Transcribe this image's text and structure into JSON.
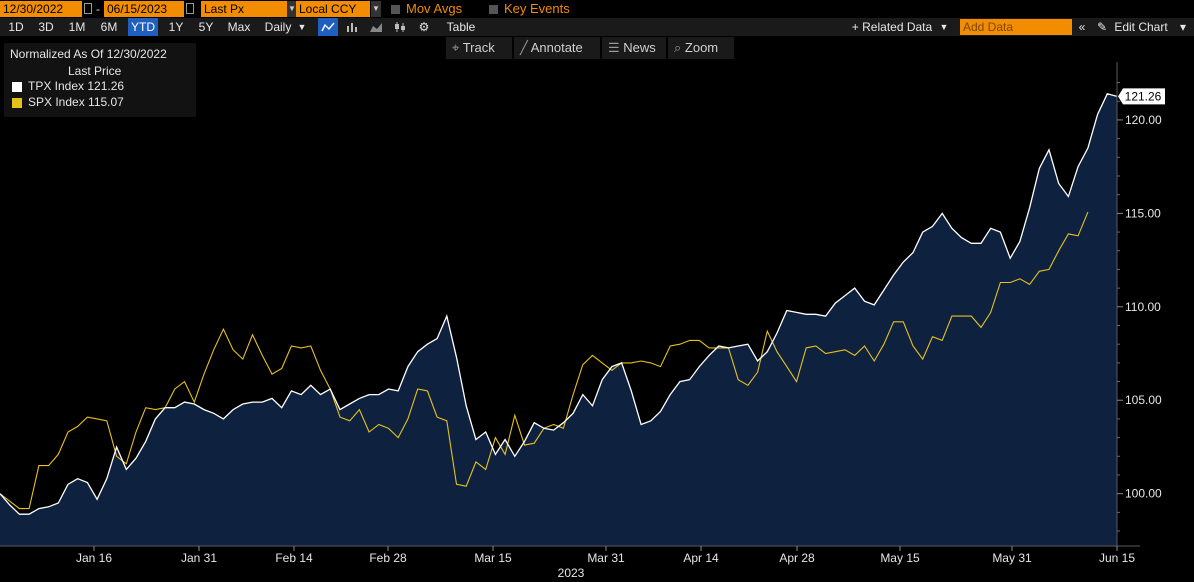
{
  "toolbar": {
    "start_date": "12/30/2022",
    "end_date": "06/15/2023",
    "price_field": "Last Px",
    "currency": "Local CCY",
    "mov_avgs_label": "Mov Avgs",
    "key_events_label": "Key Events",
    "periods": [
      "1D",
      "3D",
      "1M",
      "6M",
      "YTD",
      "1Y",
      "5Y",
      "Max"
    ],
    "active_period": "YTD",
    "frequency": "Daily",
    "table_label": "Table",
    "related_data_label": "+ Related Data",
    "add_data_placeholder": "Add Data",
    "edit_chart_label": "Edit Chart"
  },
  "tools": [
    "Track",
    "Annotate",
    "News",
    "Zoom"
  ],
  "legend": {
    "title": "Normalized As Of 12/30/2022",
    "subtitle": "Last Price",
    "entries": [
      {
        "label": "TPX Index 121.26",
        "color": "#ffffff"
      },
      {
        "label": "SPX Index 115.07",
        "color": "#e6c11a"
      }
    ]
  },
  "colors": {
    "tpx": "#ffffff",
    "spx": "#e6c11a",
    "area": "#0e2240",
    "accent": "#f28c00"
  },
  "chart_data": {
    "type": "line",
    "title": "",
    "xlabel": "2023",
    "x_ticks": [
      "Jan 16",
      "Jan 31",
      "Feb 14",
      "Feb 28",
      "Mar 15",
      "Mar 31",
      "Apr 14",
      "Apr 28",
      "May 15",
      "May 31",
      "Jun 15"
    ],
    "y_ticks": [
      "100.00",
      "105.00",
      "110.00",
      "115.00",
      "120.00"
    ],
    "ylim": [
      97.2,
      123.1
    ],
    "grid": false,
    "last_values": [
      "121.26",
      "115.07"
    ],
    "series": [
      {
        "name": "TPX Index",
        "fill": true,
        "values": [
          100.0,
          99.4,
          98.9,
          98.9,
          99.2,
          99.3,
          99.5,
          100.5,
          100.8,
          100.6,
          99.7,
          100.8,
          102.5,
          101.3,
          101.9,
          102.8,
          104.0,
          104.6,
          104.6,
          104.9,
          104.8,
          104.5,
          104.3,
          104.0,
          104.5,
          104.8,
          104.9,
          104.9,
          105.1,
          104.6,
          105.5,
          105.3,
          105.8,
          105.3,
          105.6,
          104.5,
          104.8,
          105.1,
          105.3,
          105.3,
          105.6,
          105.5,
          106.8,
          107.6,
          108.0,
          108.3,
          109.5,
          107.3,
          104.7,
          102.9,
          103.3,
          102.1,
          102.9,
          102.0,
          102.8,
          103.8,
          103.5,
          103.4,
          103.8,
          104.3,
          105.3,
          104.7,
          106.1,
          106.8,
          107.0,
          105.5,
          103.7,
          103.9,
          104.4,
          105.3,
          106.0,
          106.1,
          106.8,
          107.4,
          107.9,
          107.8,
          107.9,
          108.0,
          107.1,
          107.6,
          108.6,
          109.8,
          109.7,
          109.6,
          109.6,
          109.5,
          110.2,
          110.6,
          111.0,
          110.3,
          110.1,
          110.9,
          111.7,
          112.4,
          112.9,
          114.0,
          114.3,
          115.0,
          114.2,
          113.7,
          113.4,
          113.4,
          114.2,
          114.0,
          112.6,
          113.5,
          115.3,
          117.4,
          118.4,
          116.6,
          115.9,
          117.5,
          118.5,
          120.3,
          121.4,
          121.26
        ]
      },
      {
        "name": "SPX Index",
        "fill": false,
        "values": [
          100.0,
          99.6,
          99.2,
          99.2,
          101.5,
          101.5,
          102.1,
          103.3,
          103.6,
          104.1,
          104.0,
          103.9,
          102.0,
          101.6,
          103.3,
          104.6,
          104.5,
          104.6,
          105.6,
          106.0,
          104.9,
          106.4,
          107.7,
          108.8,
          107.7,
          107.2,
          108.5,
          107.4,
          106.4,
          106.7,
          107.9,
          107.8,
          107.9,
          106.6,
          105.6,
          104.1,
          103.9,
          104.5,
          103.3,
          103.7,
          103.5,
          103.0,
          104.0,
          105.6,
          105.5,
          104.1,
          103.9,
          100.5,
          100.4,
          101.7,
          101.3,
          103.0,
          102.1,
          104.2,
          102.6,
          102.7,
          103.5,
          103.7,
          103.5,
          105.3,
          106.9,
          107.4,
          107.0,
          106.6,
          107.0,
          107.0,
          107.1,
          107.0,
          106.8,
          107.9,
          108.0,
          108.2,
          108.2,
          107.8,
          107.8,
          107.8,
          106.1,
          105.8,
          106.5,
          108.7,
          107.6,
          106.8,
          106.0,
          107.8,
          107.9,
          107.5,
          107.6,
          107.7,
          107.4,
          107.9,
          107.1,
          108.0,
          109.2,
          109.2,
          107.9,
          107.2,
          108.4,
          108.2,
          109.5,
          109.5,
          109.5,
          108.9,
          109.7,
          111.3,
          111.3,
          111.5,
          111.2,
          111.9,
          112.0,
          113.0,
          113.9,
          113.8,
          115.07
        ]
      }
    ]
  }
}
